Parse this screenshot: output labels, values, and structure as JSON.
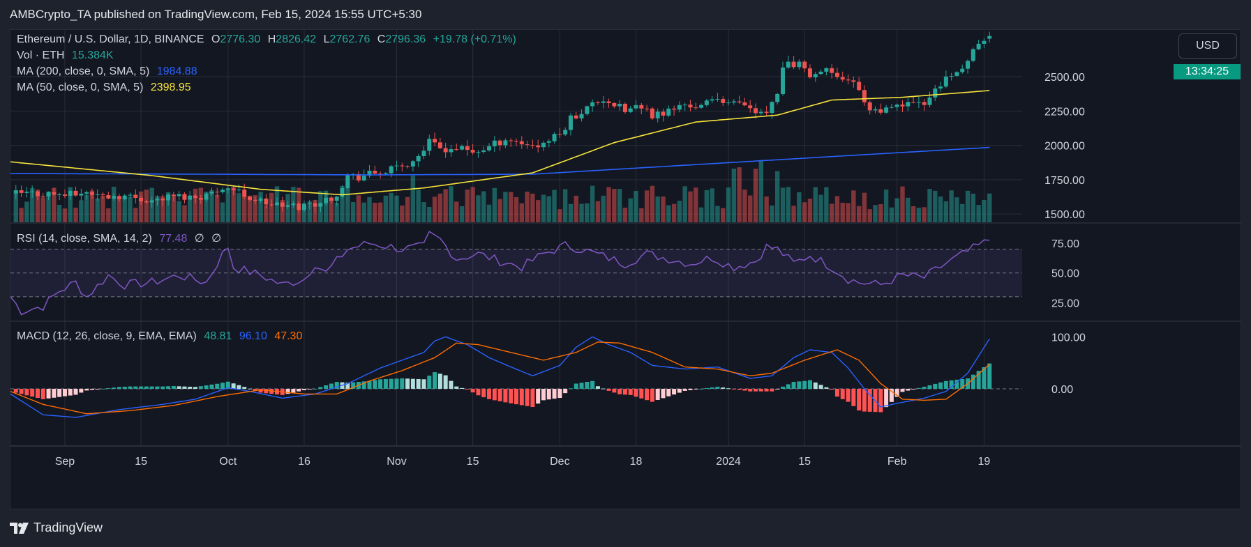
{
  "publisher": "AMBCrypto_TA published on TradingView.com, Feb 15, 2024 15:55 UTC+5:30",
  "branding": {
    "logo_text": "TradingView",
    "logo_icon": "tradingview-logo-icon"
  },
  "currency_button": "USD",
  "countdown": "13:34:25",
  "colors": {
    "up": "#26a69a",
    "down": "#ef5350",
    "ma200": "#2962ff",
    "ma50": "#f7e33c",
    "rsi": "#7e57c2",
    "macd": "#2962ff",
    "signal": "#ff6d00",
    "bg": "#131722",
    "grid": "#2a2e39"
  },
  "legend": {
    "symbol": "Ethereum / U.S. Dollar, 1D, BINANCE",
    "open_label": "O",
    "open": "2776.30",
    "high_label": "H",
    "high": "2826.42",
    "low_label": "L",
    "low": "2762.76",
    "close_label": "C",
    "close": "2796.36",
    "change": "+19.78 (+0.71%)",
    "vol_label": "Vol · ETH",
    "vol_value": "15.384K",
    "ma200_label": "MA (200, close, 0, SMA, 5)",
    "ma200_value": "1984.88",
    "ma50_label": "MA (50, close, 0, SMA, 5)",
    "ma50_value": "2398.95",
    "rsi_label": "RSI (14, close, SMA, 14, 2)",
    "rsi_value": "77.48",
    "rsi_extra1": "∅",
    "rsi_extra2": "∅",
    "macd_label": "MACD (12, 26, close, 9, EMA, EMA)",
    "macd_hist": "48.81",
    "macd_value": "96.10",
    "macd_signal": "47.30"
  },
  "chart_data": [
    {
      "type": "candlestick",
      "title": "Ethereum / U.S. Dollar, 1D, BINANCE",
      "x_tick_labels": [
        "Sep",
        "15",
        "Oct",
        "16",
        "Nov",
        "15",
        "Dec",
        "18",
        "2024",
        "15",
        "Feb",
        "19"
      ],
      "x_tick_days": [
        4,
        18,
        34,
        48,
        65,
        79,
        95,
        109,
        126,
        140,
        157,
        173
      ],
      "y_ticks": [
        1500,
        1750,
        2000,
        2250,
        2500
      ],
      "y_tick_labels": [
        "1500.00",
        "1750.00",
        "2000.00",
        "2250.00",
        "2500.00"
      ],
      "ylim": [
        1440,
        2840
      ],
      "days_visible": [
        -6,
        180
      ],
      "close_keypoints": [
        [
          0,
          1650
        ],
        [
          5,
          1640
        ],
        [
          8,
          1660
        ],
        [
          11,
          1630
        ],
        [
          14,
          1635
        ],
        [
          17,
          1620
        ],
        [
          20,
          1600
        ],
        [
          24,
          1630
        ],
        [
          28,
          1625
        ],
        [
          31,
          1650
        ],
        [
          33,
          1700
        ],
        [
          35,
          1680
        ],
        [
          38,
          1620
        ],
        [
          41,
          1580
        ],
        [
          44,
          1560
        ],
        [
          47,
          1555
        ],
        [
          50,
          1580
        ],
        [
          52,
          1600
        ],
        [
          54,
          1650
        ],
        [
          56,
          1780
        ],
        [
          58,
          1770
        ],
        [
          60,
          1790
        ],
        [
          62,
          1800
        ],
        [
          64,
          1820
        ],
        [
          66,
          1850
        ],
        [
          68,
          1880
        ],
        [
          71,
          2020
        ],
        [
          73,
          1980
        ],
        [
          76,
          1980
        ],
        [
          79,
          1950
        ],
        [
          82,
          1990
        ],
        [
          85,
          2050
        ],
        [
          88,
          2020
        ],
        [
          91,
          2000
        ],
        [
          93,
          2040
        ],
        [
          95,
          2080
        ],
        [
          97,
          2200
        ],
        [
          99,
          2250
        ],
        [
          101,
          2300
        ],
        [
          103,
          2340
        ],
        [
          105,
          2300
        ],
        [
          107,
          2250
        ],
        [
          109,
          2280
        ],
        [
          112,
          2220
        ],
        [
          115,
          2250
        ],
        [
          118,
          2300
        ],
        [
          121,
          2280
        ],
        [
          124,
          2350
        ],
        [
          127,
          2300
        ],
        [
          130,
          2260
        ],
        [
          132,
          2220
        ],
        [
          133,
          2240
        ],
        [
          135,
          2350
        ],
        [
          136,
          2550
        ],
        [
          137,
          2580
        ],
        [
          139,
          2600
        ],
        [
          141,
          2520
        ],
        [
          144,
          2560
        ],
        [
          147,
          2500
        ],
        [
          149,
          2460
        ],
        [
          151,
          2330
        ],
        [
          152,
          2270
        ],
        [
          154,
          2240
        ],
        [
          156,
          2260
        ],
        [
          158,
          2300
        ],
        [
          160,
          2290
        ],
        [
          162,
          2300
        ],
        [
          164,
          2420
        ],
        [
          166,
          2480
        ],
        [
          168,
          2520
        ],
        [
          170,
          2640
        ],
        [
          172,
          2720
        ],
        [
          174,
          2796
        ]
      ],
      "ma200_keypoints": [
        [
          -6,
          1795
        ],
        [
          30,
          1790
        ],
        [
          60,
          1785
        ],
        [
          90,
          1790
        ],
        [
          120,
          1860
        ],
        [
          150,
          1930
        ],
        [
          174,
          1985
        ]
      ],
      "ma50_keypoints": [
        [
          -6,
          1880
        ],
        [
          20,
          1780
        ],
        [
          40,
          1680
        ],
        [
          55,
          1640
        ],
        [
          70,
          1690
        ],
        [
          90,
          1800
        ],
        [
          105,
          2020
        ],
        [
          120,
          2170
        ],
        [
          135,
          2220
        ],
        [
          145,
          2330
        ],
        [
          158,
          2350
        ],
        [
          174,
          2399
        ]
      ],
      "volume_spike_days": [
        68,
        127,
        128,
        131,
        132,
        135
      ],
      "legend": [
        "MA (200, close, 0, SMA, 5)",
        "MA (50, close, 0, SMA, 5)"
      ]
    },
    {
      "type": "line",
      "title": "RSI (14, close, SMA, 14, 2)",
      "y_ticks": [
        25,
        50,
        75
      ],
      "y_tick_labels": [
        "25.00",
        "50.00",
        "75.00"
      ],
      "ylim": [
        10,
        92
      ],
      "bands": [
        30,
        50,
        70
      ],
      "keypoints": [
        [
          -6,
          30
        ],
        [
          -4,
          18
        ],
        [
          0,
          22
        ],
        [
          3,
          35
        ],
        [
          6,
          42
        ],
        [
          8,
          30
        ],
        [
          12,
          48
        ],
        [
          15,
          40
        ],
        [
          20,
          42
        ],
        [
          25,
          48
        ],
        [
          30,
          42
        ],
        [
          33,
          66
        ],
        [
          34,
          72
        ],
        [
          35,
          55
        ],
        [
          40,
          48
        ],
        [
          44,
          40
        ],
        [
          48,
          45
        ],
        [
          50,
          58
        ],
        [
          52,
          50
        ],
        [
          56,
          70
        ],
        [
          60,
          75
        ],
        [
          64,
          72
        ],
        [
          66,
          70
        ],
        [
          70,
          72
        ],
        [
          71,
          82
        ],
        [
          73,
          78
        ],
        [
          76,
          62
        ],
        [
          80,
          66
        ],
        [
          84,
          60
        ],
        [
          88,
          55
        ],
        [
          92,
          66
        ],
        [
          96,
          73
        ],
        [
          99,
          70
        ],
        [
          103,
          64
        ],
        [
          107,
          58
        ],
        [
          111,
          66
        ],
        [
          115,
          62
        ],
        [
          119,
          58
        ],
        [
          123,
          63
        ],
        [
          127,
          55
        ],
        [
          131,
          60
        ],
        [
          133,
          72
        ],
        [
          135,
          70
        ],
        [
          138,
          58
        ],
        [
          141,
          65
        ],
        [
          145,
          55
        ],
        [
          148,
          45
        ],
        [
          150,
          42
        ],
        [
          154,
          40
        ],
        [
          158,
          48
        ],
        [
          162,
          46
        ],
        [
          166,
          58
        ],
        [
          170,
          68
        ],
        [
          174,
          77.48
        ]
      ]
    },
    {
      "type": "line",
      "title": "MACD (12, 26, close, 9, EMA, EMA)",
      "y_ticks": [
        0,
        100
      ],
      "y_tick_labels": [
        "0.00",
        "100.00"
      ],
      "ylim": [
        -110,
        130
      ],
      "series_labels": [
        "Histogram",
        "MACD",
        "Signal"
      ],
      "macd_keypoints": [
        [
          -6,
          -10
        ],
        [
          0,
          -50
        ],
        [
          6,
          -55
        ],
        [
          14,
          -40
        ],
        [
          22,
          -30
        ],
        [
          28,
          -20
        ],
        [
          34,
          2
        ],
        [
          38,
          -5
        ],
        [
          44,
          -18
        ],
        [
          50,
          -10
        ],
        [
          56,
          10
        ],
        [
          62,
          40
        ],
        [
          66,
          55
        ],
        [
          70,
          70
        ],
        [
          72,
          92
        ],
        [
          74,
          100
        ],
        [
          78,
          85
        ],
        [
          82,
          60
        ],
        [
          86,
          42
        ],
        [
          90,
          25
        ],
        [
          95,
          45
        ],
        [
          98,
          80
        ],
        [
          101,
          100
        ],
        [
          104,
          85
        ],
        [
          108,
          70
        ],
        [
          112,
          45
        ],
        [
          118,
          38
        ],
        [
          124,
          42
        ],
        [
          130,
          20
        ],
        [
          134,
          25
        ],
        [
          138,
          60
        ],
        [
          141,
          75
        ],
        [
          145,
          70
        ],
        [
          148,
          40
        ],
        [
          151,
          0
        ],
        [
          154,
          -35
        ],
        [
          157,
          -28
        ],
        [
          162,
          -18
        ],
        [
          166,
          -5
        ],
        [
          170,
          30
        ],
        [
          174,
          96.1
        ]
      ],
      "signal_keypoints": [
        [
          -6,
          -5
        ],
        [
          0,
          -30
        ],
        [
          8,
          -48
        ],
        [
          16,
          -42
        ],
        [
          24,
          -32
        ],
        [
          32,
          -15
        ],
        [
          40,
          -2
        ],
        [
          48,
          -10
        ],
        [
          54,
          -10
        ],
        [
          60,
          15
        ],
        [
          66,
          35
        ],
        [
          72,
          60
        ],
        [
          76,
          88
        ],
        [
          80,
          85
        ],
        [
          86,
          70
        ],
        [
          92,
          55
        ],
        [
          98,
          70
        ],
        [
          102,
          90
        ],
        [
          106,
          88
        ],
        [
          112,
          70
        ],
        [
          118,
          42
        ],
        [
          124,
          38
        ],
        [
          130,
          25
        ],
        [
          134,
          30
        ],
        [
          140,
          55
        ],
        [
          146,
          75
        ],
        [
          150,
          55
        ],
        [
          154,
          10
        ],
        [
          158,
          -20
        ],
        [
          162,
          -22
        ],
        [
          166,
          -20
        ],
        [
          170,
          10
        ],
        [
          174,
          47.3
        ]
      ]
    }
  ]
}
